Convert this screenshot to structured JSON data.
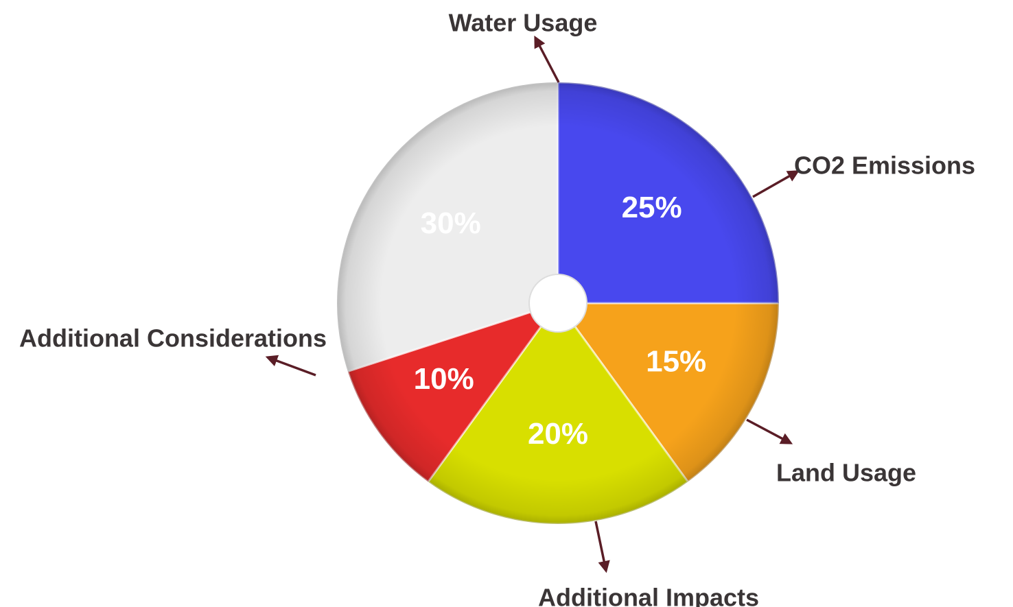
{
  "chart_data": {
    "type": "pie",
    "title": "",
    "categories": [
      "CO2 Emissions",
      "Land Usage",
      "Additional Impacts",
      "Additional Considerations",
      "Water Usage"
    ],
    "values": [
      15,
      20,
      10,
      30,
      25
    ],
    "value_labels": [
      "15%",
      "20%",
      "10%",
      "30%",
      "25%"
    ],
    "colors": [
      "#f6a21b",
      "#d8df00",
      "#e72b2b",
      "#ededed",
      "#4848ee"
    ],
    "start_angle_deg": 0,
    "direction": "clockwise",
    "donut_hole": true,
    "legend": "none",
    "label_style": "outside labels with arrows"
  }
}
